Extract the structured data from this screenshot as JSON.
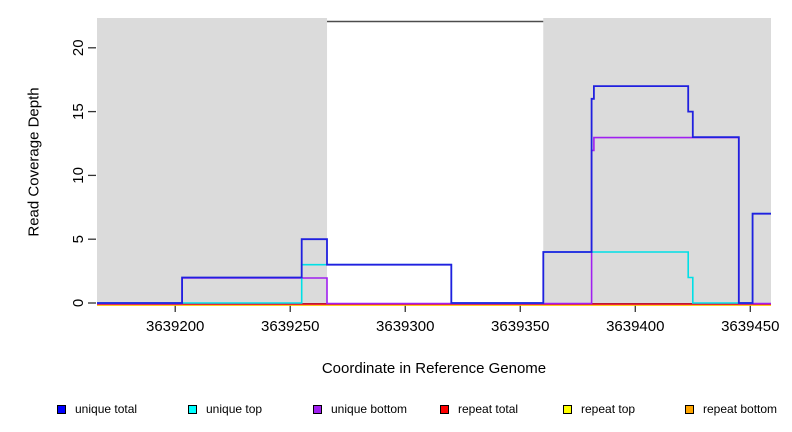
{
  "chart_data": {
    "type": "line",
    "subtype": "step-coverage",
    "title": "",
    "xlabel": "Coordinate in Reference Genome",
    "ylabel": "Read Coverage Depth",
    "xlim": [
      3639166,
      3639459
    ],
    "ylim": [
      0,
      22.1
    ],
    "x_ticks": [
      3639200,
      3639250,
      3639300,
      3639350,
      3639400,
      3639450
    ],
    "y_ticks": [
      0,
      5,
      10,
      15,
      20
    ],
    "grid": "off",
    "legend_position": "bottom",
    "shade_color": "#DBDBDB",
    "gap_border_color": "#4D4D4D",
    "axis_color": "#333333",
    "shaded_regions": [
      {
        "start": 3639166,
        "end": 3639266
      },
      {
        "start": 3639360,
        "end": 3639459
      }
    ],
    "series": [
      {
        "name": "unique total",
        "color": "#2020DF",
        "points": [
          [
            3639166,
            0
          ],
          [
            3639203,
            2
          ],
          [
            3639255,
            5
          ],
          [
            3639266,
            3
          ],
          [
            3639320,
            0
          ],
          [
            3639360,
            4
          ],
          [
            3639381,
            16
          ],
          [
            3639382,
            17
          ],
          [
            3639423,
            15
          ],
          [
            3639425,
            13
          ],
          [
            3639445,
            0
          ],
          [
            3639451,
            7
          ]
        ]
      },
      {
        "name": "unique top",
        "color": "#00E0E6",
        "points": [
          [
            3639166,
            0
          ],
          [
            3639255,
            3
          ],
          [
            3639320,
            0
          ],
          [
            3639360,
            4
          ],
          [
            3639423,
            2
          ],
          [
            3639425,
            0
          ],
          [
            3639451,
            7
          ]
        ]
      },
      {
        "name": "unique bottom",
        "color": "#A020F0",
        "points": [
          [
            3639166,
            0
          ],
          [
            3639203,
            2
          ],
          [
            3639266,
            0
          ],
          [
            3639381,
            12
          ],
          [
            3639382,
            13
          ],
          [
            3639445,
            0
          ]
        ]
      },
      {
        "name": "repeat total",
        "color": "#E8143C",
        "points": [
          [
            3639166,
            0
          ]
        ]
      },
      {
        "name": "repeat top",
        "color": "#FFE800",
        "points": [
          [
            3639166,
            0
          ]
        ]
      },
      {
        "name": "repeat bottom",
        "color": "#FF9A00",
        "points": [
          [
            3639166,
            0
          ]
        ]
      }
    ],
    "legend": [
      {
        "label": "unique total",
        "color": "#0000FF"
      },
      {
        "label": "unique top",
        "color": "#00FFFF"
      },
      {
        "label": "unique bottom",
        "color": "#A020F0"
      },
      {
        "label": "repeat total",
        "color": "#FF0000"
      },
      {
        "label": "repeat top",
        "color": "#FFFF00"
      },
      {
        "label": "repeat bottom",
        "color": "#FFA500"
      }
    ]
  }
}
